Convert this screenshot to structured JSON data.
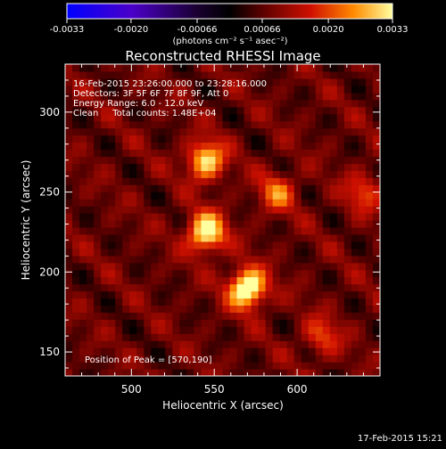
{
  "chart_data": {
    "type": "heatmap",
    "title": "Reconstructed RHESSI Image",
    "xlabel": "Heliocentric X (arcsec)",
    "ylabel": "Heliocentric Y (arcsec)",
    "xlim": [
      460,
      650
    ],
    "ylim": [
      135,
      330
    ],
    "x_ticks": [
      "500",
      "550",
      "600"
    ],
    "x_tick_values": [
      500,
      550,
      600
    ],
    "y_ticks": [
      "150",
      "200",
      "250",
      "300"
    ],
    "y_tick_values": [
      150,
      200,
      250,
      300
    ],
    "colorbar": {
      "range": [
        -0.0033,
        0.0033
      ],
      "tick_labels": [
        "-0.0033",
        "-0.0020",
        "-0.00066",
        "0.00066",
        "0.0020",
        "0.0033"
      ],
      "tick_values": [
        -0.0033,
        -0.002,
        -0.00066,
        0.00066,
        0.002,
        0.0033
      ],
      "label": "(photons cm⁻² s⁻¹ asec⁻²)"
    },
    "sources": [
      {
        "x": 545,
        "y": 270,
        "value": 0.0025
      },
      {
        "x": 545,
        "y": 225,
        "value": 0.0029
      },
      {
        "x": 570,
        "y": 190,
        "value": 0.0033
      },
      {
        "x": 588,
        "y": 250,
        "value": 0.0015
      },
      {
        "x": 615,
        "y": 160,
        "value": 0.0012
      },
      {
        "x": 640,
        "y": 250,
        "value": 0.0012
      }
    ],
    "annotations": [
      "16-Feb-2015 23:26:00.000 to 23:28:16.000",
      "Detectors: 3F 5F 6F 7F 8F 9F, Att 0",
      "Energy Range: 6.0 - 12.0 keV",
      "Clean     Total counts: 1.48E+04"
    ],
    "peak_label": "Position of Peak = [570,190]"
  },
  "footer_timestamp": "17-Feb-2015 15:21"
}
